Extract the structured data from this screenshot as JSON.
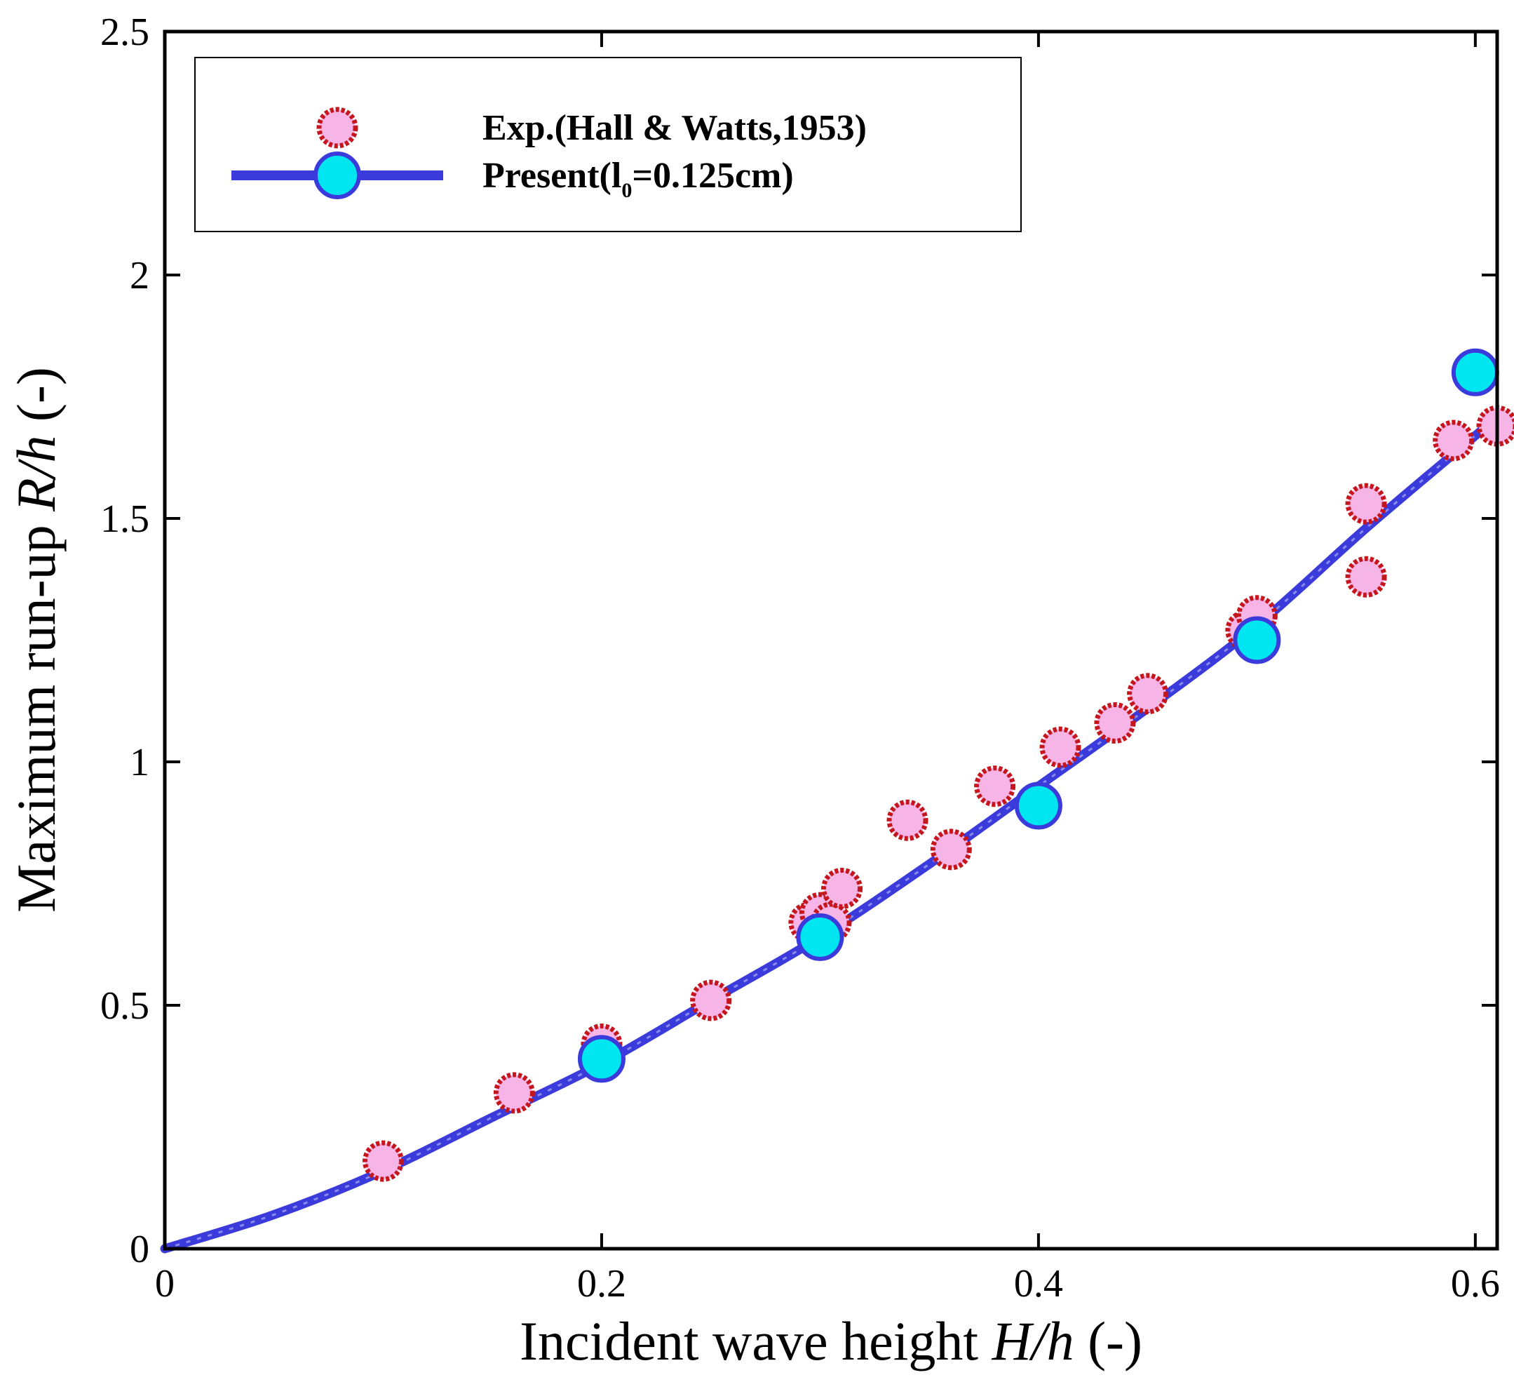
{
  "chart_data": {
    "type": "scatter",
    "xlabel_prefix": "Incident wave height ",
    "xlabel_var": "H/h",
    "xlabel_suffix": " (-)",
    "ylabel_prefix": "Maximum run-up ",
    "ylabel_var": "R/h",
    "ylabel_suffix": " (-)",
    "xlim": [
      0,
      0.61
    ],
    "ylim": [
      0,
      2.5
    ],
    "xticks": [
      0,
      0.2,
      0.4,
      0.6
    ],
    "xtick_labels": [
      "0",
      "0.2",
      "0.4",
      "0.6"
    ],
    "yticks": [
      0,
      0.5,
      1,
      1.5,
      2,
      2.5
    ],
    "ytick_labels": [
      "0",
      "0.5",
      "1",
      "1.5",
      "2",
      "2.5"
    ],
    "grid": false,
    "legend_position": "top-left",
    "series": [
      {
        "name": "Exp.(Hall & Watts,1953)",
        "kind": "scatter",
        "marker_fill": "#f7b4e6",
        "marker_edge": "#c4161c",
        "x": [
          0.1,
          0.16,
          0.2,
          0.25,
          0.295,
          0.3,
          0.305,
          0.31,
          0.34,
          0.36,
          0.38,
          0.41,
          0.435,
          0.45,
          0.495,
          0.5,
          0.55,
          0.55,
          0.59,
          0.61
        ],
        "y": [
          0.18,
          0.32,
          0.42,
          0.51,
          0.67,
          0.69,
          0.67,
          0.74,
          0.88,
          0.82,
          0.95,
          1.03,
          1.08,
          1.14,
          1.27,
          1.3,
          1.53,
          1.38,
          1.66,
          1.69
        ]
      },
      {
        "name_prefix": "Present(l",
        "name_sub": "0",
        "name_suffix": "=0.125cm)",
        "kind": "line+markers",
        "line_color": "#3b3bdb",
        "marker_fill": "#00e6f0",
        "marker_edge": "#3b3bdb",
        "curve_x": [
          0,
          0.05,
          0.1,
          0.15,
          0.2,
          0.25,
          0.3,
          0.35,
          0.4,
          0.45,
          0.5,
          0.55,
          0.6,
          0.61
        ],
        "curve_y": [
          0,
          0.07,
          0.16,
          0.27,
          0.38,
          0.51,
          0.64,
          0.79,
          0.95,
          1.11,
          1.28,
          1.48,
          1.67,
          1.71
        ],
        "x": [
          0.2,
          0.3,
          0.4,
          0.5,
          0.6
        ],
        "y": [
          0.39,
          0.64,
          0.91,
          1.25,
          1.8
        ]
      }
    ]
  }
}
